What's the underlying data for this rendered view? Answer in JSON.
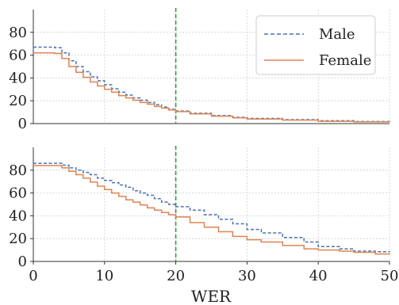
{
  "chart_data": {
    "type": "line",
    "xlabel": "WER",
    "x_ticks": [
      0,
      10,
      20,
      30,
      40,
      50
    ],
    "legend": {
      "placement": "top-right",
      "entries": [
        "Male",
        "Female"
      ]
    },
    "grid": true,
    "threshold_line": {
      "x": 20,
      "color": "#2ca02c",
      "style": "dashed"
    },
    "colors": {
      "Male": "#4c72b0",
      "Female": "#dd8452"
    },
    "subplots": [
      {
        "xlim": [
          0,
          50
        ],
        "ylim": [
          0,
          100
        ],
        "y_ticks": [
          0,
          20,
          40,
          60,
          80
        ],
        "series": [
          {
            "name": "Male",
            "style": "dashed",
            "points": [
              [
                0,
                67
              ],
              [
                3,
                66.5
              ],
              [
                4,
                62
              ],
              [
                5,
                55
              ],
              [
                6,
                50
              ],
              [
                7,
                45.5
              ],
              [
                8,
                41
              ],
              [
                9,
                37.5
              ],
              [
                10,
                34
              ],
              [
                11,
                30.5
              ],
              [
                12,
                27.5
              ],
              [
                13,
                25
              ],
              [
                14,
                22.5
              ],
              [
                15,
                20.5
              ],
              [
                16,
                18.5
              ],
              [
                17,
                16.5
              ],
              [
                18,
                14.5
              ],
              [
                19,
                12.5
              ],
              [
                20,
                11
              ],
              [
                22,
                9
              ],
              [
                25,
                7
              ],
              [
                28,
                5.5
              ],
              [
                30,
                4.5
              ],
              [
                35,
                3.5
              ],
              [
                40,
                2.5
              ],
              [
                45,
                1.8
              ],
              [
                50,
                1.5
              ]
            ]
          },
          {
            "name": "Female",
            "style": "solid",
            "points": [
              [
                0,
                62
              ],
              [
                3,
                61.5
              ],
              [
                4,
                57
              ],
              [
                5,
                50
              ],
              [
                6,
                45
              ],
              [
                7,
                40.5
              ],
              [
                8,
                36.5
              ],
              [
                9,
                33
              ],
              [
                10,
                30
              ],
              [
                11,
                27.5
              ],
              [
                12,
                24.5
              ],
              [
                13,
                22.5
              ],
              [
                14,
                20.5
              ],
              [
                15,
                18.5
              ],
              [
                16,
                17
              ],
              [
                17,
                15
              ],
              [
                18,
                13.5
              ],
              [
                19,
                12
              ],
              [
                20,
                10.5
              ],
              [
                22,
                8.5
              ],
              [
                25,
                6.5
              ],
              [
                28,
                5
              ],
              [
                30,
                4
              ],
              [
                35,
                3
              ],
              [
                40,
                2
              ],
              [
                45,
                1.5
              ],
              [
                50,
                1
              ]
            ]
          }
        ]
      },
      {
        "xlim": [
          0,
          50
        ],
        "ylim": [
          0,
          100
        ],
        "y_ticks": [
          0,
          20,
          40,
          60,
          80
        ],
        "series": [
          {
            "name": "Male",
            "style": "dashed",
            "points": [
              [
                0,
                86
              ],
              [
                3,
                86
              ],
              [
                4,
                84.5
              ],
              [
                5,
                82
              ],
              [
                6,
                80
              ],
              [
                7,
                78
              ],
              [
                8,
                76
              ],
              [
                9,
                73
              ],
              [
                10,
                71
              ],
              [
                11,
                69
              ],
              [
                12,
                67
              ],
              [
                13,
                65
              ],
              [
                14,
                62
              ],
              [
                15,
                60
              ],
              [
                16,
                58
              ],
              [
                17,
                55
              ],
              [
                18,
                52
              ],
              [
                19,
                50
              ],
              [
                20,
                48
              ],
              [
                22,
                45
              ],
              [
                24,
                41
              ],
              [
                26,
                37
              ],
              [
                28,
                33
              ],
              [
                30,
                28
              ],
              [
                32,
                25
              ],
              [
                35,
                21
              ],
              [
                38,
                17
              ],
              [
                40,
                13
              ],
              [
                43,
                11
              ],
              [
                45,
                9
              ],
              [
                48,
                8.5
              ],
              [
                50,
                8
              ]
            ]
          },
          {
            "name": "Female",
            "style": "solid",
            "points": [
              [
                0,
                84
              ],
              [
                3,
                84
              ],
              [
                4,
                82
              ],
              [
                5,
                79
              ],
              [
                6,
                76
              ],
              [
                7,
                73
              ],
              [
                8,
                69.5
              ],
              [
                9,
                66
              ],
              [
                10,
                63
              ],
              [
                11,
                60
              ],
              [
                12,
                57
              ],
              [
                13,
                54
              ],
              [
                14,
                52
              ],
              [
                15,
                49.5
              ],
              [
                16,
                47
              ],
              [
                17,
                45
              ],
              [
                18,
                43
              ],
              [
                19,
                41
              ],
              [
                20,
                39
              ],
              [
                22,
                34
              ],
              [
                24,
                30
              ],
              [
                26,
                26
              ],
              [
                28,
                22
              ],
              [
                30,
                19
              ],
              [
                32,
                17
              ],
              [
                35,
                14
              ],
              [
                38,
                11
              ],
              [
                40,
                10
              ],
              [
                43,
                9
              ],
              [
                45,
                8
              ],
              [
                48,
                6.5
              ],
              [
                50,
                6
              ]
            ]
          }
        ]
      }
    ]
  }
}
